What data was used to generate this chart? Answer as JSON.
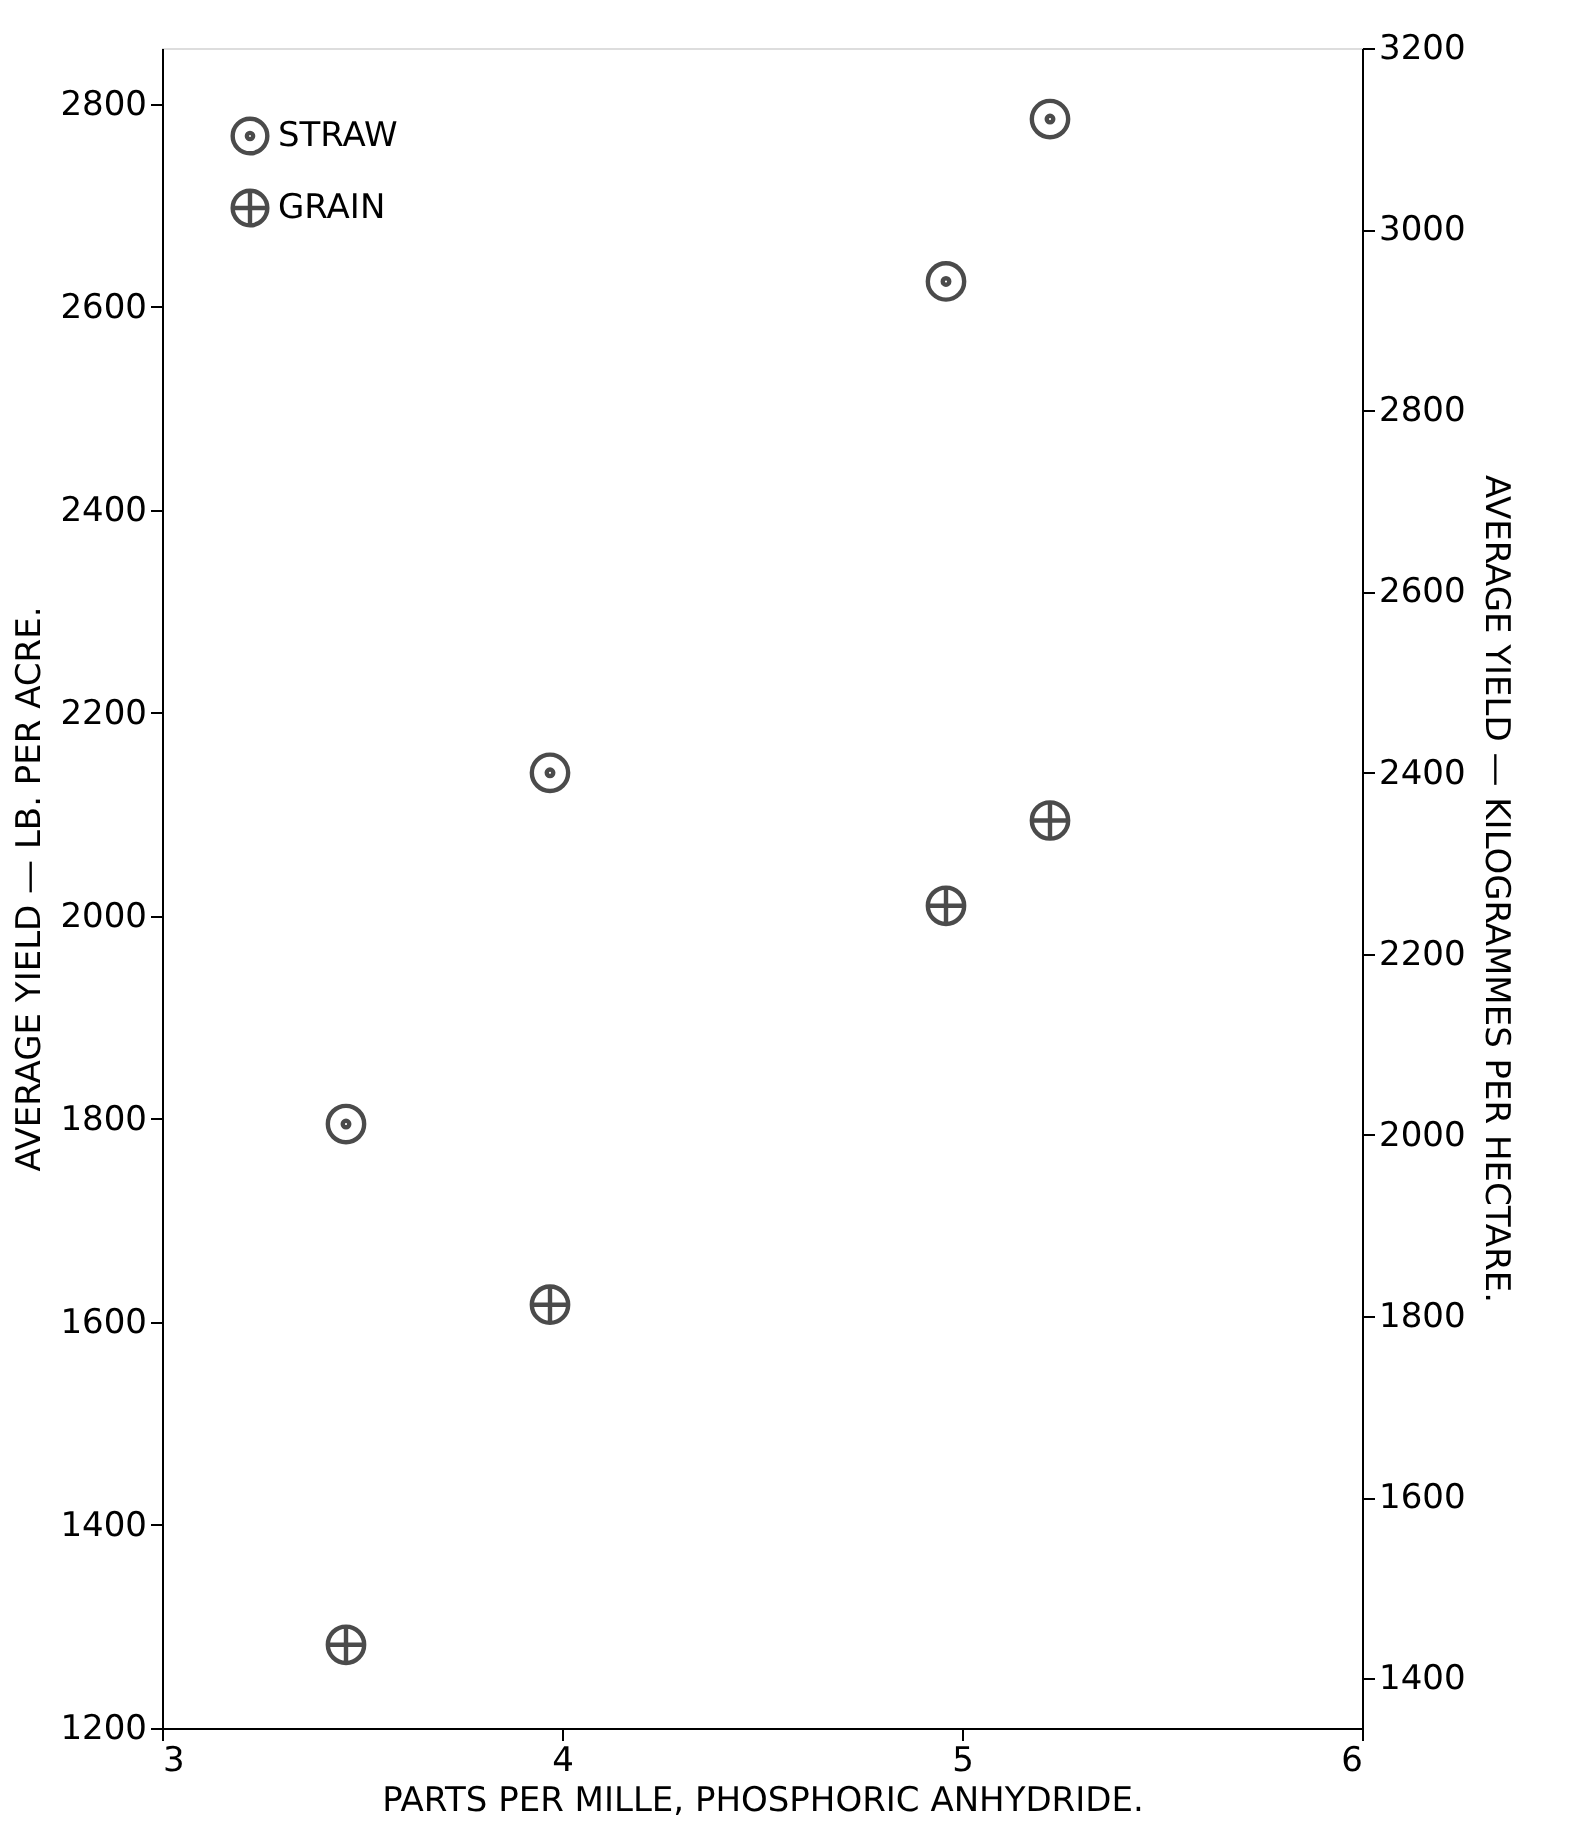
{
  "chart_data": {
    "type": "scatter",
    "xlabel": "PARTS PER MILLE,    PHOSPHORIC    ANHYDRIDE.",
    "ylabel": "AVERAGE  YIELD — LB.  PER  ACRE.",
    "y2label": "AVERAGE   YIELD   —   KILOGRAMMES   PER   HECTARE.",
    "xlim": [
      3,
      6
    ],
    "xticks": [
      3,
      4,
      5,
      6
    ],
    "ylim": [
      1200,
      2855
    ],
    "yticks": [
      1200,
      1400,
      1600,
      1800,
      2000,
      2200,
      2400,
      2600,
      2800
    ],
    "y2lim": [
      1345,
      3200
    ],
    "y2ticks": [
      1400,
      1600,
      1800,
      2000,
      2200,
      2400,
      2600,
      2800,
      3000,
      3200
    ],
    "grid": false,
    "legend": "top left",
    "series": [
      {
        "name": "STRAW",
        "color": "#000000",
        "marker": "circle",
        "x": [
          3.46,
          3.97,
          4.96,
          5.22
        ],
        "values": [
          1795,
          2141,
          2625,
          2785
        ]
      },
      {
        "name": "GRAIN",
        "color": "#000000",
        "marker": "cross",
        "x": [
          3.46,
          3.97,
          4.96,
          5.22
        ],
        "values": [
          1282,
          1617,
          2010,
          2094
        ]
      }
    ]
  }
}
